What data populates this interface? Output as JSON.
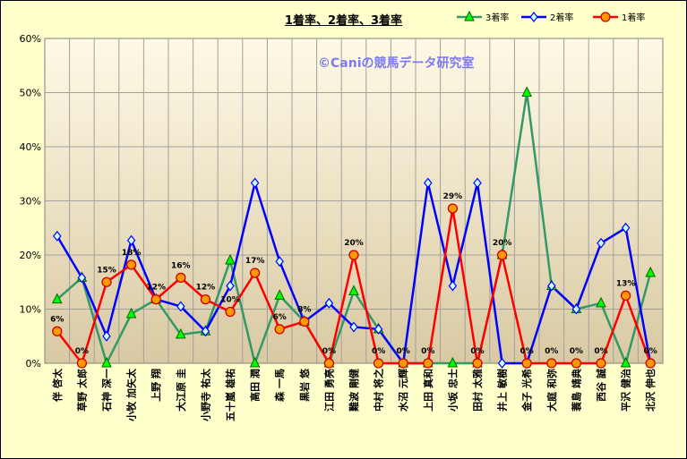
{
  "title": "1着率、2着率、3着率",
  "watermark": "©Caniの競馬データ研究室",
  "chart_data": {
    "type": "line",
    "title": "1着率、2着率、3着率",
    "categories": [
      "伴 啓太",
      "草野 太郎",
      "石神 深一",
      "小牧 加矢太",
      "上野 翔",
      "大江原 圭",
      "小野寺 祐太",
      "五十嵐 雄祐",
      "高田 潤",
      "森 一馬",
      "黒岩 悠",
      "江田 勇亮",
      "難波 剛健",
      "中村 将之",
      "水沼 元輝",
      "上田 真和",
      "小坂 忠士",
      "田村 太雅",
      "井上 敏樹",
      "金子 光希",
      "大庭 和弥",
      "蓑島 靖典",
      "西谷 誠",
      "平沢 健治",
      "北沢 伸也"
    ],
    "ylim": [
      0,
      60
    ],
    "yticks": [
      "0%",
      "10%",
      "20%",
      "30%",
      "40%",
      "50%",
      "60%"
    ],
    "grid": true,
    "legend_position": "top-right",
    "series": [
      {
        "name": "3着率",
        "color": "#339966",
        "marker": "triangle",
        "values": [
          11.8,
          15.8,
          0,
          9.1,
          11.8,
          5.3,
          5.9,
          19.0,
          0,
          12.5,
          7.7,
          0,
          13.3,
          6.3,
          0,
          0,
          0,
          0,
          20.0,
          50.0,
          14.3,
          10.0,
          11.1,
          0,
          16.7
        ]
      },
      {
        "name": "2着率",
        "color": "#0000ff",
        "marker": "diamond",
        "values": [
          23.5,
          15.8,
          5.0,
          22.7,
          11.8,
          10.5,
          5.9,
          14.3,
          33.3,
          18.8,
          7.7,
          11.1,
          6.7,
          6.3,
          0,
          33.3,
          14.3,
          33.3,
          0,
          0,
          14.3,
          10.0,
          22.2,
          25.0,
          0
        ]
      },
      {
        "name": "1着率",
        "color": "#ff0000",
        "marker": "circle",
        "values": [
          5.9,
          0,
          15.0,
          18.2,
          11.8,
          15.8,
          11.8,
          9.5,
          16.7,
          6.3,
          7.7,
          0,
          20.0,
          0,
          0,
          0,
          28.6,
          0,
          20.0,
          0,
          0,
          0,
          0,
          12.5,
          0
        ]
      }
    ],
    "data_labels": [
      "6%",
      "0%",
      "15%",
      "18%",
      "12%",
      "16%",
      "12%",
      "10%",
      "17%",
      "6%",
      "8%",
      "0%",
      "20%",
      "0%",
      "0%",
      "0%",
      "29%",
      "0%",
      "20%",
      "0%",
      "0%",
      "0%",
      "0%",
      "13%",
      "0%"
    ]
  }
}
